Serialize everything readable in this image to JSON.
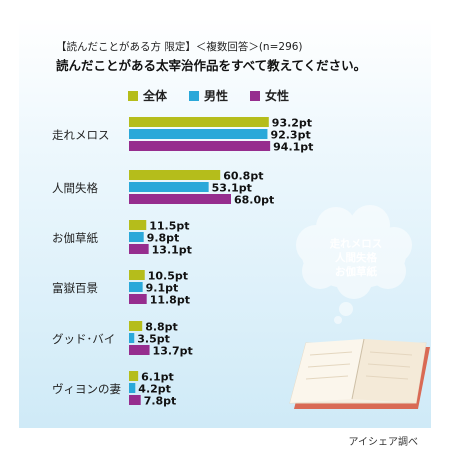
{
  "header": {
    "line1": "【読んだことがある方 限定】＜複数回答＞(n=296)",
    "line2": "読んだことがある太宰治作品をすべて教えてください。"
  },
  "legend": [
    {
      "label": "全体",
      "color": "#b5bd1b"
    },
    {
      "label": "男性",
      "color": "#2aa8d9"
    },
    {
      "label": "女性",
      "color": "#962d8e"
    }
  ],
  "thought_bubble": [
    "走れメロス",
    "人間失格",
    "お伽草紙"
  ],
  "source": "アイシェア調べ",
  "chart_data": {
    "type": "bar",
    "orientation": "horizontal",
    "categories": [
      "走れメロス",
      "人間失格",
      "お伽草紙",
      "富嶽百景",
      "グッド･バイ",
      "ヴィヨンの妻"
    ],
    "series": [
      {
        "name": "全体",
        "color": "#b5bd1b",
        "values": [
          93.2,
          60.8,
          11.5,
          10.5,
          8.8,
          6.1
        ]
      },
      {
        "name": "男性",
        "color": "#2aa8d9",
        "values": [
          92.3,
          53.1,
          9.8,
          9.1,
          3.5,
          4.2
        ]
      },
      {
        "name": "女性",
        "color": "#962d8e",
        "values": [
          94.1,
          68.0,
          13.1,
          11.8,
          13.7,
          7.8
        ]
      }
    ],
    "unit": "pt",
    "xlim": [
      0,
      100
    ],
    "legend_position": "top"
  }
}
